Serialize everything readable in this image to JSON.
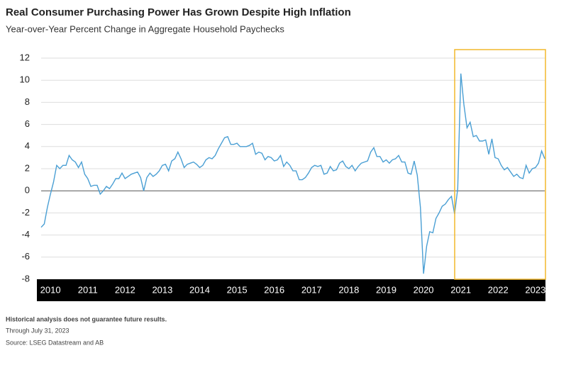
{
  "chart_data": {
    "type": "line",
    "title": "Real Consumer Purchasing Power Has Grown Despite High Inflation",
    "subtitle": "Year-over-Year Percent Change in Aggregate Household Paychecks",
    "notes": [
      "Historical analysis does not guarantee future results.",
      "Through July 31, 2023",
      "Source: LSEG Datastream and AB"
    ],
    "categories": [
      null,
      null,
      null,
      "2010",
      null,
      null,
      null,
      null,
      null,
      null,
      null,
      null,
      null,
      null,
      null,
      "2011",
      null,
      null,
      null,
      null,
      null,
      null,
      null,
      null,
      null,
      null,
      null,
      "2012",
      null,
      null,
      null,
      null,
      null,
      null,
      null,
      null,
      null,
      null,
      null,
      "2013",
      null,
      null,
      null,
      null,
      null,
      null,
      null,
      null,
      null,
      null,
      null,
      "2014",
      null,
      null,
      null,
      null,
      null,
      null,
      null,
      null,
      null,
      null,
      null,
      "2015",
      null,
      null,
      null,
      null,
      null,
      null,
      null,
      null,
      null,
      null,
      null,
      "2016",
      null,
      null,
      null,
      null,
      null,
      null,
      null,
      null,
      null,
      null,
      null,
      "2017",
      null,
      null,
      null,
      null,
      null,
      null,
      null,
      null,
      null,
      null,
      null,
      "2018",
      null,
      null,
      null,
      null,
      null,
      null,
      null,
      null,
      null,
      null,
      null,
      "2019",
      null,
      null,
      null,
      null,
      null,
      null,
      null,
      null,
      null,
      null,
      null,
      "2020",
      null,
      null,
      null,
      null,
      null,
      null,
      null,
      null,
      null,
      null,
      null,
      "2021",
      null,
      null,
      null,
      null,
      null,
      null,
      null,
      null,
      null,
      null,
      null,
      "2022",
      null,
      null,
      null,
      null,
      null,
      null,
      null,
      null,
      null,
      null,
      null,
      "2023",
      null,
      null,
      null
    ],
    "series": [
      {
        "color": "#4a9fd4",
        "values": [
          -3.3,
          -3.0,
          -1.5,
          -0.3,
          0.8,
          2.3,
          2.0,
          2.3,
          2.3,
          3.2,
          2.8,
          2.6,
          2.1,
          2.6,
          1.5,
          1.1,
          0.4,
          0.5,
          0.5,
          -0.3,
          0.0,
          0.4,
          0.2,
          0.6,
          1.1,
          1.1,
          1.6,
          1.1,
          1.3,
          1.5,
          1.6,
          1.7,
          1.2,
          0.0,
          1.2,
          1.6,
          1.3,
          1.5,
          1.8,
          2.3,
          2.4,
          1.8,
          2.7,
          2.9,
          3.5,
          2.9,
          2.1,
          2.4,
          2.5,
          2.6,
          2.4,
          2.1,
          2.3,
          2.8,
          3.0,
          2.9,
          3.2,
          3.8,
          4.3,
          4.8,
          4.9,
          4.2,
          4.2,
          4.3,
          4.0,
          4.0,
          4.0,
          4.1,
          4.3,
          3.3,
          3.5,
          3.4,
          2.8,
          3.1,
          3.0,
          2.7,
          2.8,
          3.2,
          2.2,
          2.6,
          2.3,
          1.8,
          1.8,
          1.0,
          1.0,
          1.2,
          1.6,
          2.1,
          2.3,
          2.2,
          2.3,
          1.5,
          1.6,
          2.2,
          1.8,
          1.9,
          2.5,
          2.7,
          2.2,
          2.0,
          2.3,
          1.8,
          2.2,
          2.5,
          2.6,
          2.7,
          3.5,
          3.9,
          3.1,
          3.1,
          2.6,
          2.8,
          2.5,
          2.8,
          2.9,
          3.2,
          2.6,
          2.6,
          1.6,
          1.5,
          2.7,
          1.4,
          -1.5,
          -7.5,
          -5.0,
          -3.7,
          -3.8,
          -2.5,
          -2.0,
          -1.4,
          -1.2,
          -0.8,
          -0.5,
          -2.1,
          0.2,
          10.6,
          7.8,
          5.7,
          6.2,
          4.9,
          5.0,
          4.5,
          4.5,
          4.6,
          3.3,
          4.7,
          3.0,
          2.9,
          2.3,
          1.9,
          2.1,
          1.7,
          1.3,
          1.5,
          1.2,
          1.1,
          2.3,
          1.6,
          2.0,
          2.1,
          2.5,
          3.6,
          2.9
        ]
      }
    ],
    "ylim": [
      -8,
      12
    ],
    "yticks": [
      -8,
      -6,
      -4,
      -2,
      0,
      2,
      4,
      6,
      8,
      10,
      12
    ],
    "grid": true
  }
}
